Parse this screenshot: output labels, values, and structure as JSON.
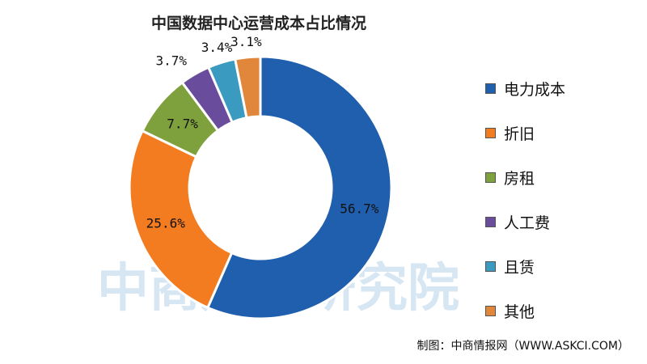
{
  "chart_data": {
    "type": "pie",
    "title": "中国数据中心运营成本占比情况",
    "categories": [
      "电力成本",
      "折旧",
      "房租",
      "人工费",
      "且赁",
      "其他"
    ],
    "values": [
      56.7,
      25.6,
      7.7,
      3.7,
      3.4,
      3.1
    ],
    "labels": [
      "56.7%",
      "25.6%",
      "7.7%",
      "3.7%",
      "3.4%",
      "3.1%"
    ],
    "colors": [
      "#1f5fae",
      "#f47c20",
      "#7fa13d",
      "#6a4c9c",
      "#3a9ac0",
      "#e0873c"
    ],
    "donut": true,
    "legend_position": "right"
  },
  "watermark": "中商产业研究院",
  "footer": "制图：中商情报网（WWW.ASKCI.COM）"
}
